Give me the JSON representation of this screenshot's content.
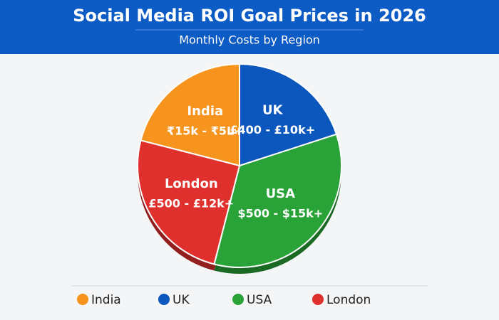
{
  "chart_data": {
    "type": "pie",
    "title": "Social Media ROI Goal Prices in 2026",
    "subtitle": "Monthly Costs by Region",
    "categories": [
      "India",
      "UK",
      "USA",
      "London"
    ],
    "values": [
      21,
      20,
      34,
      25
    ],
    "value_labels": [
      "₹15k - ₹5L+",
      "£400 - £10k+",
      "$500 - $15k+",
      "£500 - £12k+"
    ],
    "colors": [
      "#f7941d",
      "#0b57bd",
      "#29a338",
      "#e0302e"
    ],
    "legend": "bottom"
  }
}
